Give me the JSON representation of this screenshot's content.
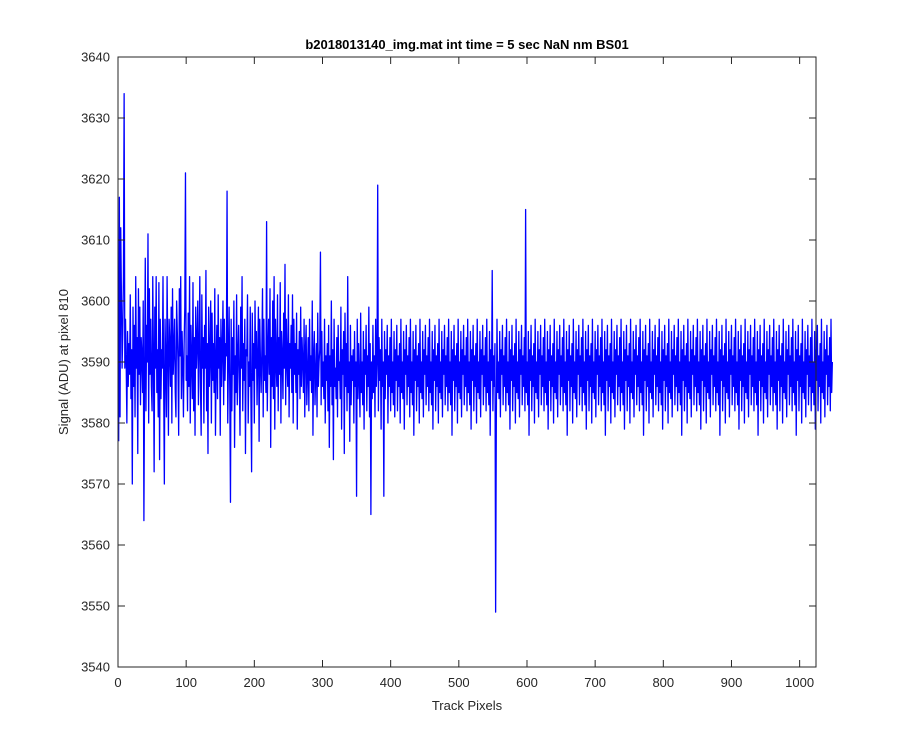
{
  "colors": {
    "background": "#ffffff",
    "axes": "#262626",
    "series": "#0000ff"
  },
  "chart_data": {
    "type": "line",
    "title": "b2018013140_img.mat int time = 5 sec  NaN nm BS01",
    "xlabel": "Track Pixels",
    "ylabel": "Signal (ADU) at pixel 810",
    "xlim": [
      0,
      1024
    ],
    "ylim": [
      3540,
      3640
    ],
    "x_ticks": [
      0,
      100,
      200,
      300,
      400,
      500,
      600,
      700,
      800,
      900,
      1000
    ],
    "y_ticks": [
      3540,
      3550,
      3560,
      3570,
      3580,
      3590,
      3600,
      3610,
      3620,
      3630,
      3640
    ],
    "grid": false,
    "legend": "none",
    "series": [
      {
        "color": "#0000ff",
        "x_start": 1,
        "x_step": 1,
        "values_note": "",
        "values": [
          3577,
          3617,
          3581,
          3612,
          3601,
          3589,
          3595,
          3604,
          3634,
          3589,
          3597,
          3590,
          3580,
          3595,
          3586,
          3593,
          3588,
          3601,
          3584,
          3592,
          3570,
          3599,
          3586,
          3596,
          3581,
          3604,
          3589,
          3594,
          3575,
          3602,
          3588,
          3599,
          3583,
          3594,
          3591,
          3585,
          3600,
          3564,
          3587,
          3607,
          3582,
          3596,
          3590,
          3611,
          3580,
          3602,
          3588,
          3597,
          3586,
          3582,
          3604,
          3591,
          3572,
          3599,
          3589,
          3604,
          3585,
          3592,
          3581,
          3603,
          3574,
          3597,
          3584,
          3592,
          3589,
          3604,
          3586,
          3570,
          3597,
          3590,
          3581,
          3604,
          3592,
          3578,
          3597,
          3593,
          3586,
          3599,
          3580,
          3602,
          3588,
          3592,
          3597,
          3585,
          3581,
          3600,
          3595,
          3590,
          3578,
          3602,
          3591,
          3604,
          3584,
          3595,
          3590,
          3581,
          3593,
          3599,
          3621,
          3587,
          3591,
          3582,
          3598,
          3586,
          3604,
          3580,
          3596,
          3590,
          3584,
          3603,
          3582,
          3594,
          3578,
          3599,
          3589,
          3593,
          3600,
          3583,
          3592,
          3604,
          3586,
          3578,
          3601,
          3589,
          3594,
          3580,
          3596,
          3589,
          3605,
          3582,
          3593,
          3575,
          3599,
          3586,
          3591,
          3600,
          3580,
          3598,
          3587,
          3593,
          3585,
          3602,
          3578,
          3590,
          3596,
          3584,
          3601,
          3589,
          3594,
          3578,
          3597,
          3586,
          3592,
          3600,
          3583,
          3597,
          3587,
          3593,
          3591,
          3618,
          3580,
          3590,
          3599,
          3585,
          3567,
          3597,
          3582,
          3594,
          3588,
          3600,
          3576,
          3591,
          3585,
          3601,
          3583,
          3591,
          3596,
          3587,
          3578,
          3599,
          3589,
          3604,
          3582,
          3593,
          3587,
          3597,
          3575,
          3592,
          3591,
          3601,
          3580,
          3590,
          3586,
          3599,
          3584,
          3572,
          3598,
          3587,
          3593,
          3580,
          3600,
          3589,
          3595,
          3583,
          3591,
          3599,
          3577,
          3597,
          3590,
          3585,
          3592,
          3602,
          3581,
          3597,
          3587,
          3591,
          3585,
          3613,
          3582,
          3591,
          3597,
          3588,
          3602,
          3576,
          3594,
          3586,
          3600,
          3584,
          3604,
          3579,
          3597,
          3590,
          3586,
          3601,
          3582,
          3594,
          3588,
          3603,
          3580,
          3595,
          3591,
          3584,
          3598,
          3589,
          3606,
          3583,
          3597,
          3590,
          3586,
          3601,
          3581,
          3593,
          3589,
          3596,
          3585,
          3601,
          3580,
          3597,
          3588,
          3593,
          3585,
          3598,
          3579,
          3592,
          3588,
          3595,
          3584,
          3599,
          3586,
          3594,
          3590,
          3585,
          3597,
          3581,
          3592,
          3596,
          3583,
          3588,
          3594,
          3582,
          3597,
          3587,
          3591,
          3585,
          3600,
          3578,
          3591,
          3595,
          3583,
          3588,
          3593,
          3581,
          3598,
          3586,
          3590,
          3592,
          3608,
          3583,
          3595,
          3586,
          3590,
          3584,
          3597,
          3580,
          3591,
          3587,
          3593,
          3582,
          3596,
          3576,
          3591,
          3586,
          3600,
          3583,
          3592,
          3574,
          3597,
          3586,
          3589,
          3584,
          3594,
          3581,
          3596,
          3587,
          3590,
          3584,
          3599,
          3579,
          3592,
          3588,
          3595,
          3575,
          3598,
          3586,
          3593,
          3582,
          3604,
          3585,
          3590,
          3577,
          3596,
          3583,
          3591,
          3587,
          3592,
          3580,
          3595,
          3586,
          3590,
          3568,
          3597,
          3584,
          3593,
          3587,
          3581,
          3598,
          3585,
          3590,
          3583,
          3595,
          3579,
          3592,
          3588,
          3596,
          3582,
          3591,
          3586,
          3599,
          3581,
          3593,
          3565,
          3590,
          3584,
          3596,
          3585,
          3591,
          3581,
          3597,
          3586,
          3590,
          3619,
          3582,
          3594,
          3587,
          3592,
          3579,
          3597,
          3586,
          3590,
          3568,
          3595,
          3584,
          3592,
          3588,
          3596,
          3580,
          3591,
          3586,
          3594,
          3582,
          3597,
          3585,
          3590,
          3583,
          3595,
          3581,
          3592,
          3587,
          3596,
          3582,
          3591,
          3586,
          3593,
          3580,
          3597,
          3585,
          3590,
          3584,
          3595,
          3579,
          3592,
          3588,
          3596,
          3583,
          3591,
          3586,
          3594,
          3581,
          3597,
          3585,
          3590,
          3583,
          3595,
          3578,
          3592,
          3587,
          3596,
          3582,
          3591,
          3586,
          3593,
          3580,
          3597,
          3585,
          3590,
          3584,
          3595,
          3581,
          3592,
          3588,
          3596,
          3583,
          3591,
          3586,
          3594,
          3582,
          3597,
          3585,
          3590,
          3583,
          3595,
          3579,
          3592,
          3587,
          3596,
          3582,
          3591,
          3586,
          3593,
          3580,
          3597,
          3585,
          3590,
          3584,
          3595,
          3581,
          3592,
          3588,
          3596,
          3583,
          3591,
          3586,
          3594,
          3582,
          3597,
          3585,
          3590,
          3583,
          3595,
          3578,
          3592,
          3587,
          3596,
          3582,
          3591,
          3586,
          3593,
          3580,
          3597,
          3585,
          3590,
          3584,
          3595,
          3581,
          3592,
          3588,
          3596,
          3583,
          3591,
          3586,
          3594,
          3582,
          3597,
          3585,
          3590,
          3583,
          3595,
          3579,
          3592,
          3587,
          3596,
          3582,
          3591,
          3586,
          3593,
          3580,
          3597,
          3585,
          3590,
          3584,
          3595,
          3581,
          3592,
          3588,
          3596,
          3583,
          3591,
          3586,
          3594,
          3582,
          3597,
          3585,
          3590,
          3583,
          3595,
          3578,
          3592,
          3587,
          3605,
          3582,
          3591,
          3586,
          3593,
          3549,
          3580,
          3597,
          3585,
          3590,
          3584,
          3595,
          3581,
          3592,
          3588,
          3596,
          3583,
          3591,
          3586,
          3594,
          3582,
          3597,
          3585,
          3590,
          3583,
          3595,
          3579,
          3592,
          3587,
          3596,
          3582,
          3591,
          3586,
          3593,
          3580,
          3597,
          3585,
          3590,
          3584,
          3595,
          3581,
          3592,
          3588,
          3596,
          3583,
          3591,
          3586,
          3594,
          3582,
          3615,
          3585,
          3590,
          3583,
          3595,
          3578,
          3592,
          3587,
          3596,
          3582,
          3591,
          3586,
          3593,
          3580,
          3597,
          3585,
          3590,
          3584,
          3595,
          3581,
          3592,
          3588,
          3596,
          3583,
          3591,
          3586,
          3594,
          3582,
          3597,
          3585,
          3590,
          3583,
          3595,
          3579,
          3592,
          3587,
          3596,
          3582,
          3591,
          3586,
          3593,
          3580,
          3597,
          3585,
          3590,
          3584,
          3595,
          3581,
          3592,
          3588,
          3596,
          3583,
          3591,
          3586,
          3594,
          3582,
          3597,
          3585,
          3590,
          3583,
          3595,
          3578,
          3592,
          3587,
          3596,
          3582,
          3591,
          3586,
          3593,
          3580,
          3597,
          3585,
          3590,
          3584,
          3595,
          3581,
          3592,
          3588,
          3596,
          3583,
          3591,
          3586,
          3594,
          3582,
          3597,
          3585,
          3590,
          3583,
          3595,
          3579,
          3592,
          3587,
          3596,
          3582,
          3591,
          3586,
          3593,
          3580,
          3597,
          3585,
          3590,
          3584,
          3595,
          3581,
          3592,
          3588,
          3596,
          3583,
          3591,
          3586,
          3594,
          3582,
          3597,
          3585,
          3590,
          3583,
          3595,
          3578,
          3592,
          3587,
          3596,
          3582,
          3591,
          3586,
          3593,
          3580,
          3597,
          3585,
          3590,
          3584,
          3595,
          3581,
          3592,
          3588,
          3596,
          3583,
          3591,
          3586,
          3594,
          3582,
          3597,
          3585,
          3590,
          3583,
          3595,
          3579,
          3592,
          3587,
          3596,
          3582,
          3591,
          3586,
          3593,
          3580,
          3597,
          3585,
          3590,
          3584,
          3595,
          3581,
          3592,
          3588,
          3596,
          3583,
          3591,
          3586,
          3594,
          3582,
          3597,
          3585,
          3590,
          3583,
          3595,
          3578,
          3592,
          3587,
          3596,
          3582,
          3591,
          3586,
          3593,
          3580,
          3597,
          3585,
          3590,
          3584,
          3595,
          3581,
          3592,
          3588,
          3596,
          3583,
          3591,
          3586,
          3594,
          3582,
          3597,
          3585,
          3590,
          3583,
          3595,
          3579,
          3592,
          3587,
          3596,
          3582,
          3591,
          3586,
          3593,
          3580,
          3597,
          3585,
          3590,
          3584,
          3595,
          3581,
          3592,
          3588,
          3596,
          3583,
          3591,
          3586,
          3594,
          3582,
          3597,
          3585,
          3590,
          3583,
          3595,
          3578,
          3592,
          3587,
          3596,
          3582,
          3591,
          3586,
          3593,
          3580,
          3597,
          3585,
          3590,
          3584,
          3595,
          3581,
          3592,
          3588,
          3596,
          3583,
          3591,
          3586,
          3594,
          3582,
          3597,
          3585,
          3590,
          3583,
          3595,
          3579,
          3592,
          3587,
          3596,
          3582,
          3591,
          3586,
          3593,
          3580,
          3597,
          3585,
          3590,
          3584,
          3595,
          3581,
          3592,
          3588,
          3596,
          3583,
          3591,
          3586,
          3594,
          3582,
          3597,
          3585,
          3590,
          3583,
          3595,
          3578,
          3592,
          3587,
          3596,
          3582,
          3591,
          3586,
          3593,
          3580,
          3597,
          3585,
          3590,
          3584,
          3595,
          3581,
          3592,
          3588,
          3596,
          3583,
          3591,
          3586,
          3594,
          3582,
          3597,
          3585,
          3590,
          3583,
          3595,
          3579,
          3592,
          3587,
          3596,
          3582,
          3591,
          3586,
          3593,
          3580,
          3597,
          3585,
          3590,
          3584,
          3595,
          3581,
          3592,
          3588,
          3596,
          3583,
          3591,
          3586,
          3594,
          3582,
          3597,
          3585,
          3590,
          3583,
          3595,
          3578,
          3592,
          3587,
          3596,
          3582,
          3591,
          3586,
          3593,
          3580,
          3597,
          3585,
          3590,
          3584,
          3595,
          3581,
          3592,
          3588,
          3596,
          3583,
          3591,
          3586,
          3594,
          3582,
          3597,
          3585,
          3590,
          3583,
          3595,
          3579,
          3592,
          3587,
          3596,
          3582,
          3591,
          3586,
          3593,
          3580,
          3597,
          3585,
          3590,
          3584,
          3595,
          3581,
          3592,
          3588,
          3596,
          3583,
          3591,
          3586,
          3594,
          3582,
          3597,
          3585,
          3590,
          3583,
          3595,
          3578,
          3592,
          3587,
          3596,
          3582,
          3591,
          3586,
          3593,
          3580,
          3597,
          3585,
          3590,
          3584,
          3595,
          3581,
          3592,
          3588,
          3596,
          3583,
          3591,
          3586,
          3594,
          3582,
          3597,
          3585,
          3590,
          3583,
          3595,
          3579,
          3592,
          3587,
          3596,
          3582,
          3591,
          3586,
          3593,
          3580,
          3597,
          3585,
          3590,
          3584,
          3595,
          3581,
          3592,
          3588,
          3596,
          3583,
          3591,
          3586,
          3594,
          3582,
          3597,
          3585,
          3590
        ]
      }
    ]
  }
}
